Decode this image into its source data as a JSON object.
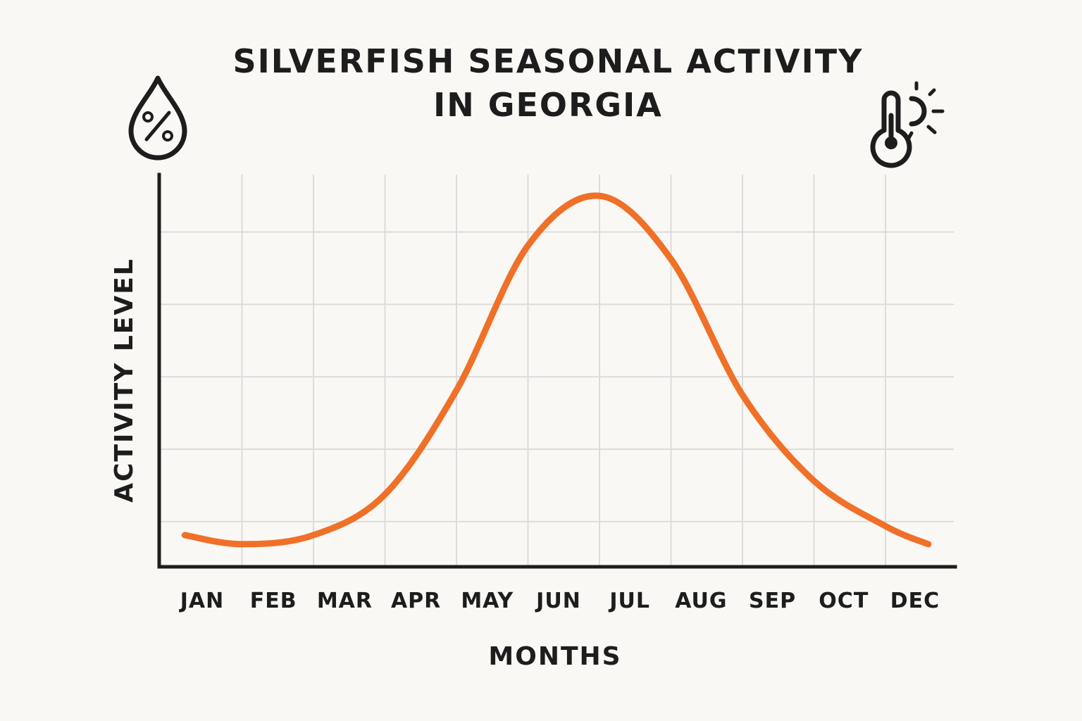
{
  "title_lines": [
    "SILVERFISH SEASONAL ACTIVITY",
    "IN GEORGIA"
  ],
  "icons": {
    "left": "humidity-percent-drop-icon",
    "right": "thermometer-sun-icon"
  },
  "chart_data": {
    "type": "line",
    "title": "SILVERFISH SEASONAL ACTIVITY IN GEORGIA",
    "xlabel": "MONTHS",
    "ylabel": "ACTIVITY LEVEL",
    "categories": [
      "JAN",
      "FEB",
      "MAR",
      "APR",
      "MAY",
      "JUN",
      "JUL",
      "AUG",
      "SEP",
      "OCT",
      "DEC"
    ],
    "x": [
      0.2,
      1,
      2,
      3,
      4,
      5,
      6,
      7,
      8,
      9,
      10,
      10.6
    ],
    "values": [
      0.7,
      0.5,
      0.7,
      1.6,
      3.9,
      7.1,
      8.2,
      6.8,
      3.8,
      1.9,
      0.9,
      0.5
    ],
    "ylim": [
      0,
      8
    ],
    "grid": true,
    "color": "#f07028"
  }
}
